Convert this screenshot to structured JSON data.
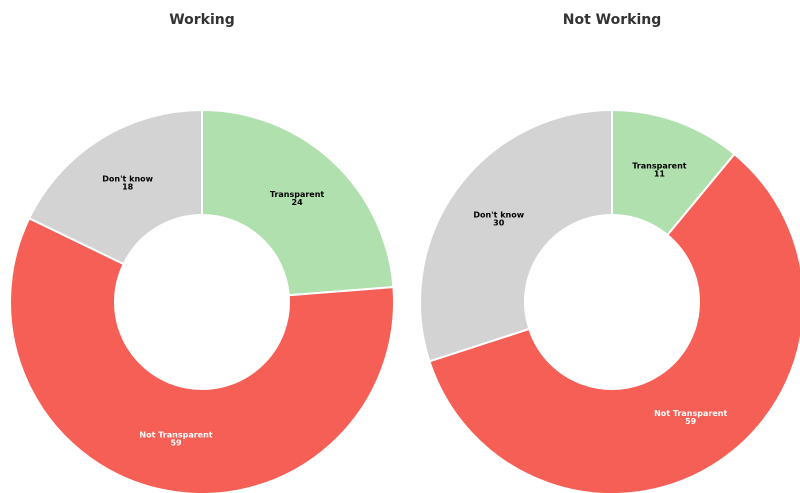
{
  "chart_data": [
    {
      "type": "donut",
      "title": "Working",
      "categories": [
        "Transparent",
        "Not Transparent",
        "Don't know"
      ],
      "values": [
        24,
        59,
        18
      ],
      "colors": [
        "#b0e0ae",
        "#f65f55",
        "#d3d3d3"
      ]
    },
    {
      "type": "donut",
      "title": "Not Working",
      "categories": [
        "Transparent",
        "Not Transparent",
        "Don't know"
      ],
      "values": [
        11,
        59,
        30
      ],
      "colors": [
        "#b0e0ae",
        "#f65f55",
        "#d3d3d3"
      ]
    }
  ]
}
